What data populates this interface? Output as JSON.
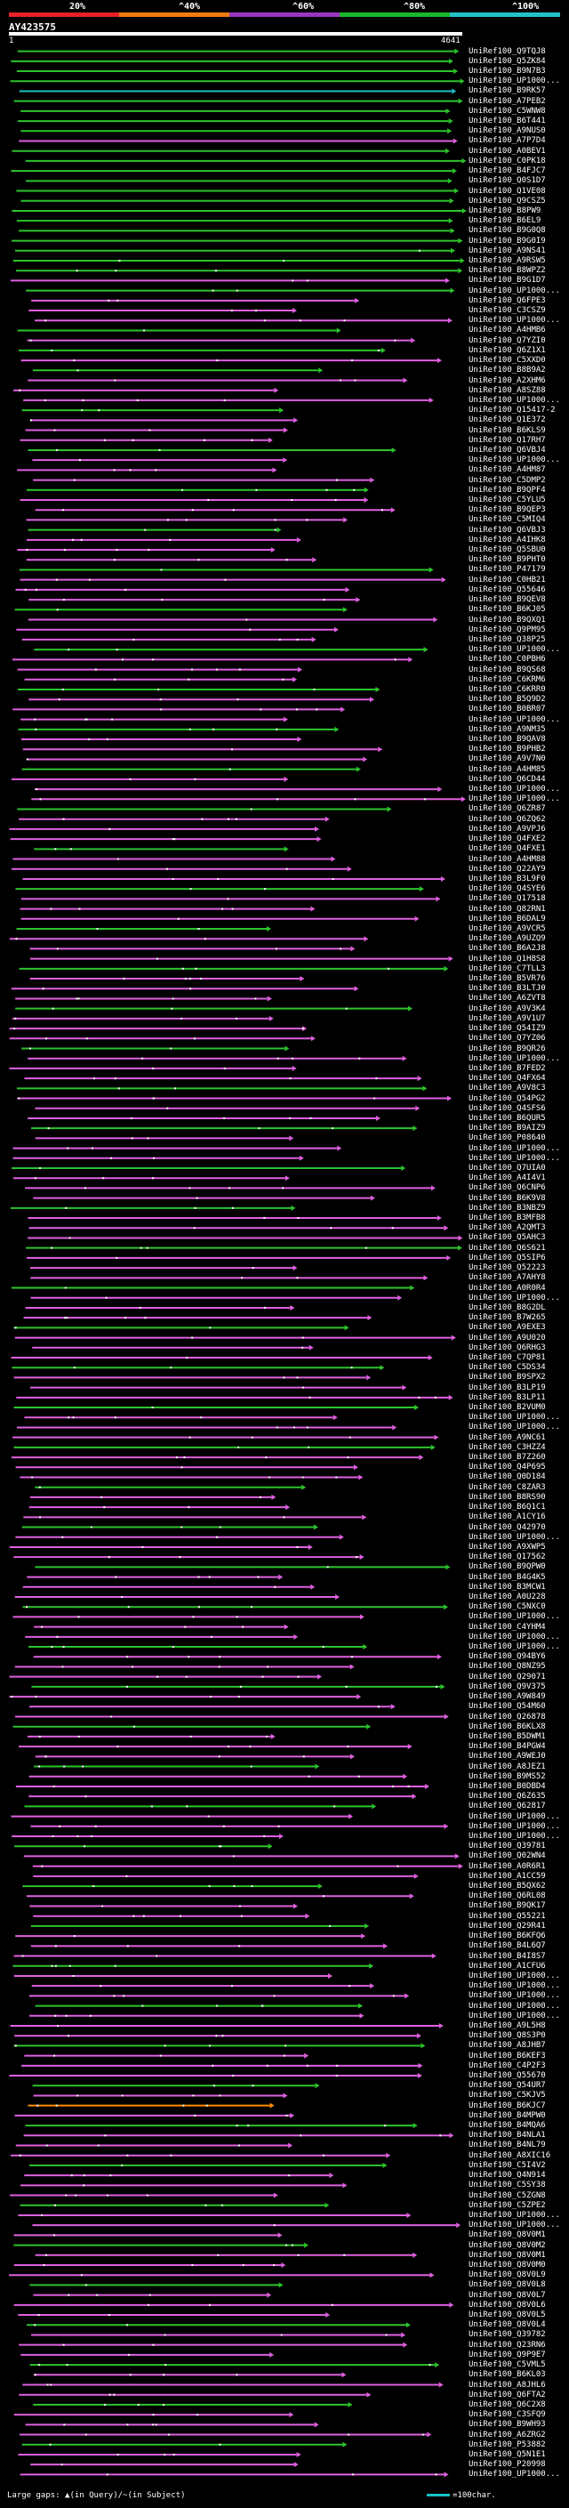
{
  "scale": {
    "ticks": [
      "20%",
      "^40%",
      "^60%",
      "^80%",
      "^100%"
    ],
    "colors": [
      "#e8202a",
      "#f07a10",
      "#9a35c2",
      "#1ab82a",
      "#23c2c6"
    ]
  },
  "query": {
    "title": "AY423575",
    "start": "1",
    "end": "4641",
    "length": 4641
  },
  "legend": {
    "gaps_text": "Large gaps: ▲(in Query)/~(in Subject)",
    "scale_text": "=100char."
  },
  "hit_colors": {
    "magenta": "#e060e0",
    "green": "#2cc42c",
    "cyan": "#22c0c8",
    "orange": "#ff8c00",
    "red": "#e01818"
  },
  "hits": [
    "UniRef100_Q9TQJ8",
    "UniRef100_Q5ZK84",
    "UniRef100_B9N7B3",
    "UniRef100_UP1000...",
    "UniRef100_B9RK57",
    "UniRef100_A7PEB2",
    "UniRef100_C5WNW8",
    "UniRef100_B6T441",
    "UniRef100_A9NUS0",
    "UniRef100_A7P7D4",
    "UniRef100_A0BEV1",
    "UniRef100_C0PK18",
    "UniRef100_B4FJC7",
    "UniRef100_Q0S1D7",
    "UniRef100_Q1VE08",
    "UniRef100_Q9CSZ5",
    "UniRef100_B8PW9",
    "UniRef100_B6EL9",
    "UniRef100_B9G0Q8",
    "UniRef100_B9G0I9",
    "UniRef100_A9NS41",
    "UniRef100_A9RSW5",
    "UniRef100_B8WPZ2",
    "UniRef100_B9G1D7",
    "UniRef100_UP1000...",
    "UniRef100_Q6FPE3",
    "UniRef100_C3CSZ9",
    "UniRef100_UP1000...",
    "UniRef100_A4HMB6",
    "UniRef100_Q7YZI0",
    "UniRef100_Q6Z1X1",
    "UniRef100_C5XXD0",
    "UniRef100_B8B9A2",
    "UniRef100_A2XHM6",
    "UniRef100_A8SZ88",
    "UniRef100_UP1000...",
    "UniRef100_Q15417-2",
    "UniRef100_Q1E372",
    "UniRef100_B6KLS9",
    "UniRef100_Q17RH7",
    "UniRef100_Q6VBJ4",
    "UniRef100_UP1000...",
    "UniRef100_A4HM87",
    "UniRef100_C5DMP2",
    "UniRef100_B9QPF4",
    "UniRef100_C5YLU5",
    "UniRef100_B9QEP3",
    "UniRef100_C5MIQ4",
    "UniRef100_Q6VBJ3",
    "UniRef100_A4IHK8",
    "UniRef100_Q5SBU0",
    "UniRef100_B9PHT0",
    "UniRef100_P47179",
    "UniRef100_C0HB21",
    "UniRef100_Q55646",
    "UniRef100_B9QEV8",
    "UniRef100_B6KJ05",
    "UniRef100_B9QXQ1",
    "UniRef100_Q9PM95",
    "UniRef100_Q38P25",
    "UniRef100_UP1000...",
    "UniRef100_C0PBH6",
    "UniRef100_B9QS68",
    "UniRef100_C6KRM6",
    "UniRef100_C6KRR0",
    "UniRef100_B5Q9D2",
    "UniRef100_B0BR07",
    "UniRef100_UP1000...",
    "UniRef100_A9NM35",
    "UniRef100_B9QAV8",
    "UniRef100_B9PHB2",
    "UniRef100_A9V7N0",
    "UniRef100_A4HM85",
    "UniRef100_Q6CD44",
    "UniRef100_UP1000...",
    "UniRef100_UP1000...",
    "UniRef100_Q6ZR87",
    "UniRef100_Q6ZQ62",
    "UniRef100_A9VPJ6",
    "UniRef100_Q4FXE2",
    "UniRef100_Q4FXE1",
    "UniRef100_A4HM88",
    "UniRef100_Q22AY9",
    "UniRef100_B3L9F0",
    "UniRef100_Q4SYE6",
    "UniRef100_Q17518",
    "UniRef100_Q82RN1",
    "UniRef100_B6DAL9",
    "UniRef100_A9VCR5",
    "UniRef100_A9UZQ9",
    "UniRef100_B6A2J8",
    "UniRef100_Q1H8S8",
    "UniRef100_C7TLL3",
    "UniRef100_B5VR76",
    "UniRef100_B3LTJ0",
    "UniRef100_A6ZVT8",
    "UniRef100_A9V3K4",
    "UniRef100_A9V1U7",
    "UniRef100_Q54IZ9",
    "UniRef100_Q7YZ06",
    "UniRef100_B9QR26",
    "UniRef100_UP1000...",
    "UniRef100_B7FED2",
    "UniRef100_Q4FX64",
    "UniRef100_A9V8C3",
    "UniRef100_Q54PG2",
    "UniRef100_Q4SFS6",
    "UniRef100_B6QUR5",
    "UniRef100_B9AIZ9",
    "UniRef100_P08640",
    "UniRef100_UP1000...",
    "UniRef100_UP1000...",
    "UniRef100_Q7UIA0",
    "UniRef100_A4I4V1",
    "UniRef100_Q6CNP6",
    "UniRef100_B6K9V8",
    "UniRef100_B3NBZ9",
    "UniRef100_B3MFB8",
    "UniRef100_A2QMT3",
    "UniRef100_Q5AHC3",
    "UniRef100_Q6S621",
    "UniRef100_Q5SIP6",
    "UniRef100_Q52223",
    "UniRef100_A7AHY8",
    "UniRef100_A0R0R4",
    "UniRef100_UP1000...",
    "UniRef100_B8G2DL",
    "UniRef100_B7W265",
    "UniRef100_A9EXE3",
    "UniRef100_A9U020",
    "UniRef100_Q6RHG3",
    "UniRef100_C7QP81",
    "UniRef100_C5DS34",
    "UniRef100_B9SPX2",
    "UniRef100_B3LP19",
    "UniRef100_B3LP11",
    "UniRef100_B2VUM0",
    "UniRef100_UP1000...",
    "UniRef100_UP1000...",
    "UniRef100_A9NC61",
    "UniRef100_C3HZZ4",
    "UniRef100_B7Z260",
    "UniRef100_Q4P695",
    "UniRef100_Q0D184",
    "UniRef100_C8ZAR3",
    "UniRef100_B8RS90",
    "UniRef100_B6Q1C1",
    "UniRef100_A1CY16",
    "UniRef100_Q42970",
    "UniRef100_UP1000...",
    "UniRef100_A9XWP5",
    "UniRef100_Q17562",
    "UniRef100_B9QPW0",
    "UniRef100_B4G4K5",
    "UniRef100_B3MCW1",
    "UniRef100_A0U228",
    "UniRef100_C5NXC0",
    "UniRef100_UP1000...",
    "UniRef100_C4YHM4",
    "UniRef100_UP1000...",
    "UniRef100_UP1000...",
    "UniRef100_Q94BY6",
    "UniRef100_Q8NZ95",
    "UniRef100_Q29071",
    "UniRef100_Q9V375",
    "UniRef100_A9W849",
    "UniRef100_Q54M60",
    "UniRef100_Q26878",
    "UniRef100_B6KLX8",
    "UniRef100_B5DWM1",
    "UniRef100_B4PGW4",
    "UniRef100_A9WEJ0",
    "UniRef100_A8JEZ1",
    "UniRef100_B9MS52",
    "UniRef100_B0DBD4",
    "UniRef100_Q6Z635",
    "UniRef100_Q62817",
    "UniRef100_UP1000...",
    "UniRef100_UP1000...",
    "UniRef100_UP1000...",
    "UniRef100_Q39781",
    "UniRef100_Q02WN4",
    "UniRef100_A0R6R1",
    "UniRef100_A1CC59",
    "UniRef100_B5QX62",
    "UniRef100_Q6RL08",
    "UniRef100_B9QK17",
    "UniRef100_Q55221",
    "UniRef100_Q29R41",
    "UniRef100_B6KFQ6",
    "UniRef100_B4L6Q7",
    "UniRef100_B4I8S7",
    "UniRef100_A1CFU6",
    "UniRef100_UP1000...",
    "UniRef100_UP1000...",
    "UniRef100_UP1000...",
    "UniRef100_UP1000...",
    "UniRef100_UP1000...",
    "UniRef100_A9L5H8",
    "UniRef100_Q8S3P0",
    "UniRef100_A8JHB7",
    "UniRef100_B6KEF3",
    "UniRef100_C4P2F3",
    "UniRef100_Q55670",
    "UniRef100_Q54UR7",
    "UniRef100_C5KJV5",
    "UniRef100_B6KJC7",
    "UniRef100_B4MPW0",
    "UniRef100_B4MQA6",
    "UniRef100_B4NLA1",
    "UniRef100_B4NL79",
    "UniRef100_A8XIC16",
    "UniRef100_C5I4V2",
    "UniRef100_Q4N914",
    "UniRef100_C5SY38",
    "UniRef100_C5ZGN8",
    "UniRef100_C5ZPE2",
    "UniRef100_UP1000...",
    "UniRef100_UP1000...",
    "UniRef100_Q8V0M1",
    "UniRef100_Q8V0M2",
    "UniRef100_Q8V0M1",
    "UniRef100_Q8V0M0",
    "UniRef100_Q8V0L9",
    "UniRef100_Q8V0L8",
    "UniRef100_Q8V0L7",
    "UniRef100_Q8V0L6",
    "UniRef100_Q8V0L5",
    "UniRef100_Q8V0L4",
    "UniRef100_Q39782",
    "UniRef100_Q23RN6",
    "UniRef100_Q9P9E7",
    "UniRef100_C5VML5",
    "UniRef100_B6KL03",
    "UniRef100_A8JHL6",
    "UniRef100_Q6FTA2",
    "UniRef100_Q6C2X8",
    "UniRef100_C3SFQ9",
    "UniRef100_B9WH93",
    "UniRef100_A6ZRG2",
    "UniRef100_P53882",
    "UniRef100_Q5N1E1",
    "UniRef100_P20998",
    "UniRef100_UP1000..."
  ]
}
